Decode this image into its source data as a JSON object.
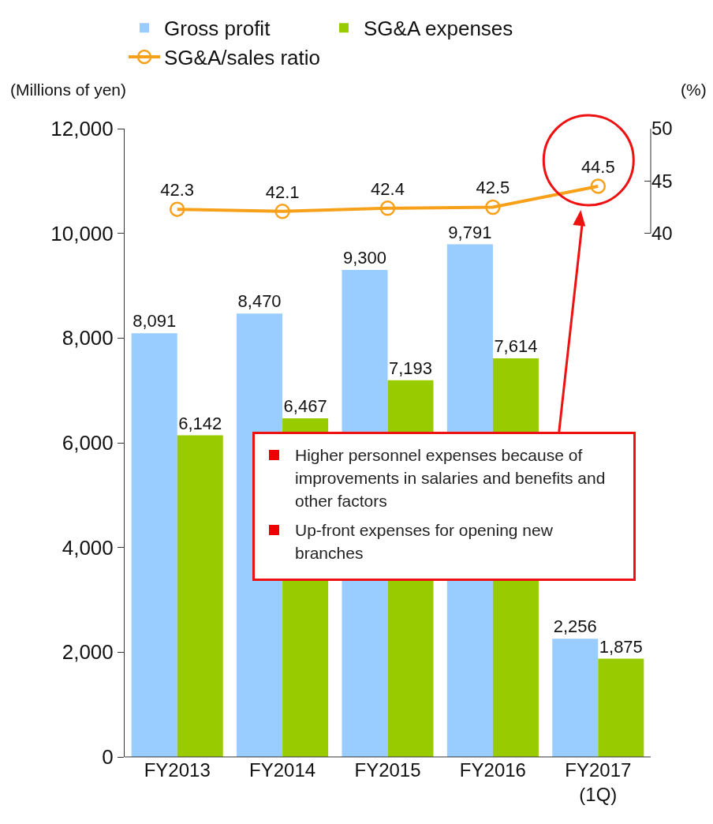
{
  "chart_data": {
    "type": "bar",
    "categories": [
      "FY2013",
      "FY2014",
      "FY2015",
      "FY2016",
      "FY2017 (1Q)"
    ],
    "series": [
      {
        "name": "Gross profit",
        "color": "#99ccff",
        "values": [
          8091,
          8470,
          9300,
          9791,
          2256
        ]
      },
      {
        "name": "SG&A expenses",
        "color": "#99cc00",
        "values": [
          6142,
          6467,
          7193,
          7614,
          1875
        ]
      },
      {
        "name": "SG&A/sales ratio",
        "type": "line",
        "axis": "y2",
        "color": "#f7a11a",
        "marker": "circle",
        "values": [
          42.3,
          42.1,
          42.4,
          42.5,
          44.5
        ]
      }
    ],
    "ylabel": "(Millions of yen)",
    "y2label": "(%)",
    "ylim": [
      0,
      12000
    ],
    "yticks": [
      {
        "value": 0,
        "label": "0"
      },
      {
        "value": 2000,
        "label": "2,000"
      },
      {
        "value": 4000,
        "label": "4,000"
      },
      {
        "value": 6000,
        "label": "6,000"
      },
      {
        "value": 8000,
        "label": "8,000"
      },
      {
        "value": 10000,
        "label": "10,000"
      },
      {
        "value": 12000,
        "label": "12,000"
      }
    ],
    "y2lim": [
      -10,
      50
    ],
    "y2ticks": [
      40,
      45,
      50
    ],
    "value_labels": [
      [
        "8,091",
        "8,470",
        "9,300",
        "9,791",
        "2,256"
      ],
      [
        "6,142",
        "6,467",
        "7,193",
        "7,614",
        "1,875"
      ],
      [
        "42.3",
        "42.1",
        "42.4",
        "42.5",
        "44.5"
      ]
    ],
    "annotations": [
      "Higher personnel expenses because of improvements in salaries and benefits and other factors",
      "Up-front expenses for opening new branches"
    ],
    "legend": "top",
    "grid": false
  }
}
